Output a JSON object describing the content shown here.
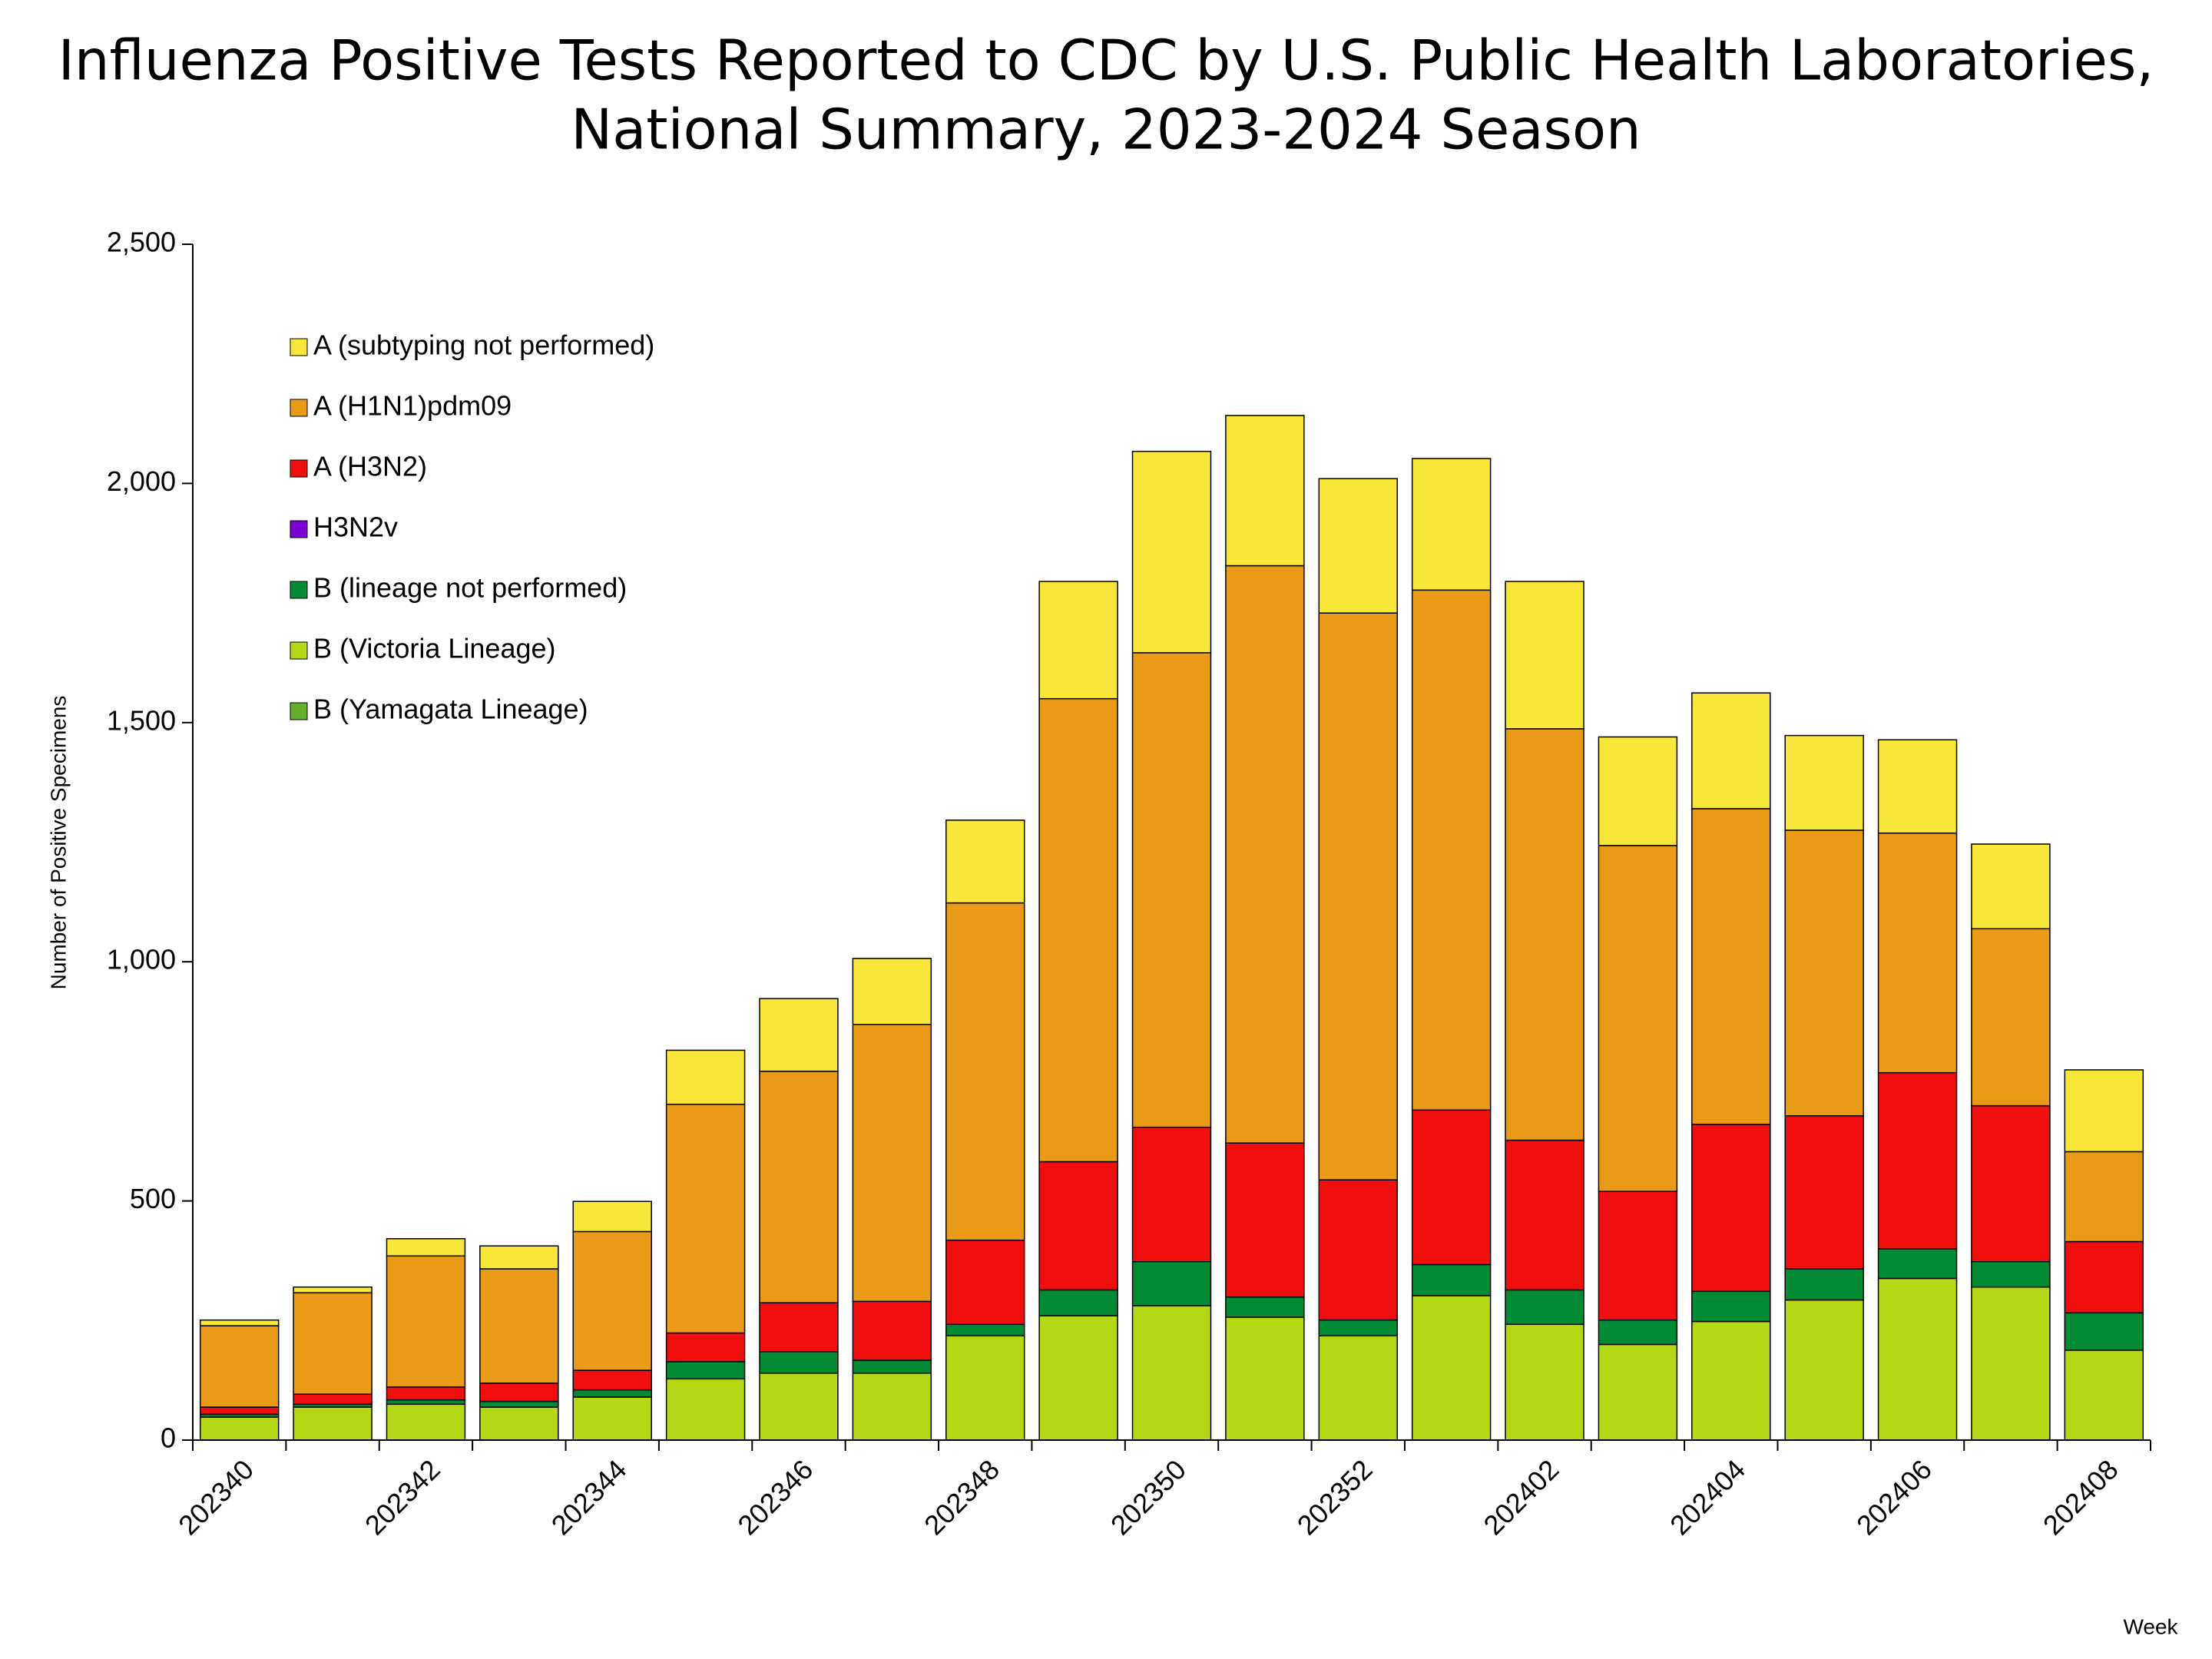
{
  "chart_data": {
    "type": "stacked_bar",
    "title": [
      "Influenza Positive Tests Reported to CDC by U.S. Public Health Laboratories,",
      "National Summary, 2023-2024 Season"
    ],
    "xlabel": "Week",
    "ylabel": "Number of Positive Specimens",
    "categories": [
      "202340",
      null,
      "202342",
      null,
      "202344",
      null,
      "202346",
      null,
      "202348",
      null,
      "202350",
      null,
      "202352",
      null,
      "202402",
      null,
      "202404",
      null,
      "202406",
      null,
      "202408"
    ],
    "ylim": [
      0,
      2500
    ],
    "yticks": [
      0,
      500,
      {
        "value": 1000,
        "label": "1,000"
      },
      {
        "value": 1500,
        "label": "1,500"
      },
      {
        "value": 2000,
        "label": "2,000"
      },
      {
        "value": 2500,
        "label": "2,500"
      }
    ],
    "legend": "upper left",
    "series": [
      {
        "name": "A (subtyping not performed)",
        "color": "#f9e63a",
        "values": [
          12,
          12,
          36,
          48,
          63,
          113,
          152,
          138,
          173,
          245,
          421,
          314,
          281,
          275,
          308,
          227,
          242,
          198,
          195,
          177,
          171
        ]
      },
      {
        "name": "A (H1N1)pdm09",
        "color": "#e99a17",
        "values": [
          170,
          212,
          274,
          239,
          290,
          478,
          484,
          579,
          705,
          968,
          992,
          1207,
          1185,
          1087,
          860,
          723,
          660,
          597,
          501,
          370,
          188
        ]
      },
      {
        "name": "A (H3N2)",
        "color": "#f00f0f",
        "values": [
          15,
          21,
          27,
          38,
          41,
          60,
          102,
          123,
          176,
          268,
          281,
          322,
          293,
          323,
          313,
          269,
          349,
          320,
          368,
          326,
          149
        ]
      },
      {
        "name": "H3N2v",
        "color": "#7b00d4",
        "values": [
          0,
          0,
          0,
          0,
          0,
          0,
          0,
          0,
          0,
          0,
          0,
          0,
          0,
          0,
          0,
          0,
          0,
          0,
          0,
          0,
          0
        ]
      },
      {
        "name": "B (lineage not performed)",
        "color": "#038a35",
        "values": [
          6,
          6,
          9,
          12,
          15,
          36,
          45,
          27,
          24,
          54,
          92,
          42,
          33,
          65,
          72,
          51,
          63,
          65,
          62,
          53,
          78
        ]
      },
      {
        "name": "B (Victoria Lineage)",
        "color": "#b4d816",
        "values": [
          48,
          69,
          75,
          69,
          90,
          128,
          140,
          140,
          218,
          260,
          281,
          257,
          218,
          302,
          242,
          200,
          248,
          293,
          338,
          320,
          188
        ]
      },
      {
        "name": "B (Yamagata Lineage)",
        "color": "#63b02a",
        "values": [
          0,
          0,
          0,
          0,
          0,
          0,
          0,
          0,
          0,
          0,
          0,
          0,
          0,
          0,
          0,
          0,
          0,
          0,
          0,
          0,
          0
        ]
      }
    ]
  }
}
